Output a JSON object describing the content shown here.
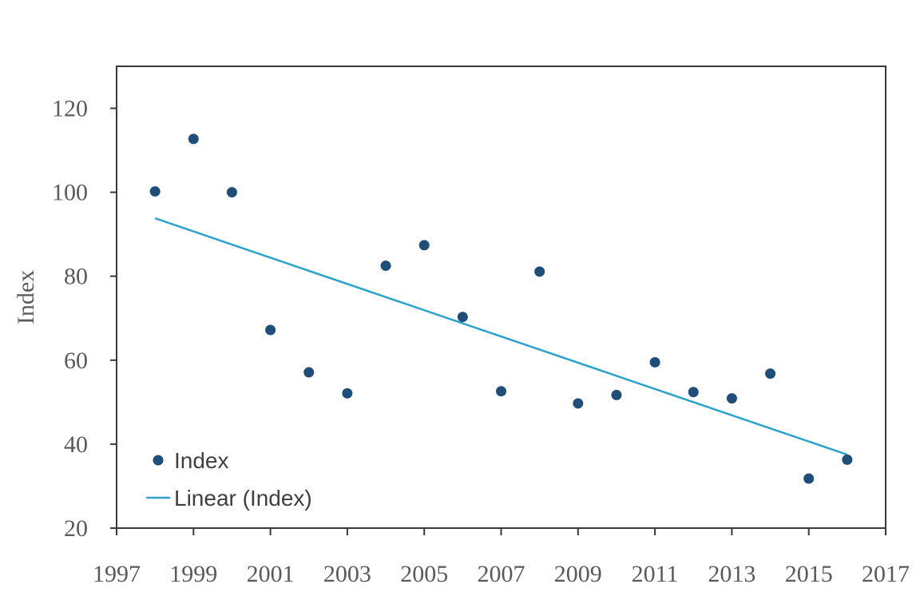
{
  "chart_data": {
    "type": "scatter",
    "title": "",
    "xlabel": "",
    "ylabel": "Index",
    "xlim": [
      1997,
      2017
    ],
    "ylim": [
      20,
      130
    ],
    "x_ticks": [
      "1997",
      "1999",
      "2001",
      "2003",
      "2005",
      "2007",
      "2009",
      "2011",
      "2013",
      "2015",
      "2017"
    ],
    "y_ticks": [
      "20",
      "40",
      "60",
      "80",
      "100",
      "120"
    ],
    "grid": false,
    "legend_position": "bottom-left",
    "series": [
      {
        "name": "Index",
        "kind": "scatter",
        "color": "#1f4e79",
        "points": [
          {
            "x": 1998,
            "y": 100.2
          },
          {
            "x": 1999,
            "y": 112.7
          },
          {
            "x": 2000,
            "y": 100.0
          },
          {
            "x": 2001,
            "y": 67.2
          },
          {
            "x": 2002,
            "y": 57.1
          },
          {
            "x": 2003,
            "y": 52.1
          },
          {
            "x": 2004,
            "y": 82.5
          },
          {
            "x": 2005,
            "y": 87.4
          },
          {
            "x": 2006,
            "y": 70.3
          },
          {
            "x": 2007,
            "y": 52.6
          },
          {
            "x": 2008,
            "y": 81.1
          },
          {
            "x": 2009,
            "y": 49.7
          },
          {
            "x": 2010,
            "y": 51.7
          },
          {
            "x": 2011,
            "y": 59.5
          },
          {
            "x": 2012,
            "y": 52.4
          },
          {
            "x": 2013,
            "y": 50.9
          },
          {
            "x": 2014,
            "y": 56.8
          },
          {
            "x": 2015,
            "y": 31.8
          },
          {
            "x": 2016,
            "y": 36.3
          }
        ]
      },
      {
        "name": "Linear (Index)",
        "kind": "trendline",
        "color": "#2aa3cc",
        "points": [
          {
            "x": 1998,
            "y": 93.8
          },
          {
            "x": 2016,
            "y": 37.5
          }
        ]
      }
    ]
  }
}
